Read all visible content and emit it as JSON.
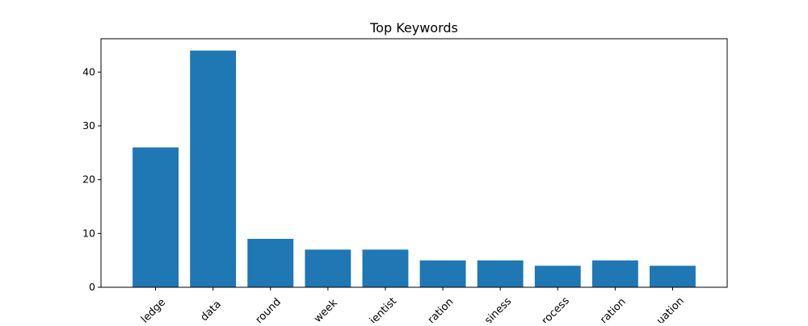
{
  "chart_data": {
    "type": "bar",
    "title": "Top Keywords",
    "xlabel": "",
    "ylabel": "",
    "categories": [
      "knowledge",
      "data",
      "background",
      "week",
      "scientist",
      "collaboration",
      "business",
      "process",
      "exploration",
      "situation"
    ],
    "visible_tick_labels": [
      "ledge",
      "data",
      "round",
      "week",
      "ientist",
      "ration",
      "siness",
      "rocess",
      "ration",
      "uation"
    ],
    "values": [
      26,
      44,
      9,
      7,
      7,
      5,
      5,
      4,
      5,
      4
    ],
    "ylim": [
      0,
      46.2
    ],
    "yticks": [
      0,
      10,
      20,
      30,
      40
    ],
    "grid": false,
    "bar_color": "#1f77b4",
    "xtick_rotation_deg": 45
  }
}
